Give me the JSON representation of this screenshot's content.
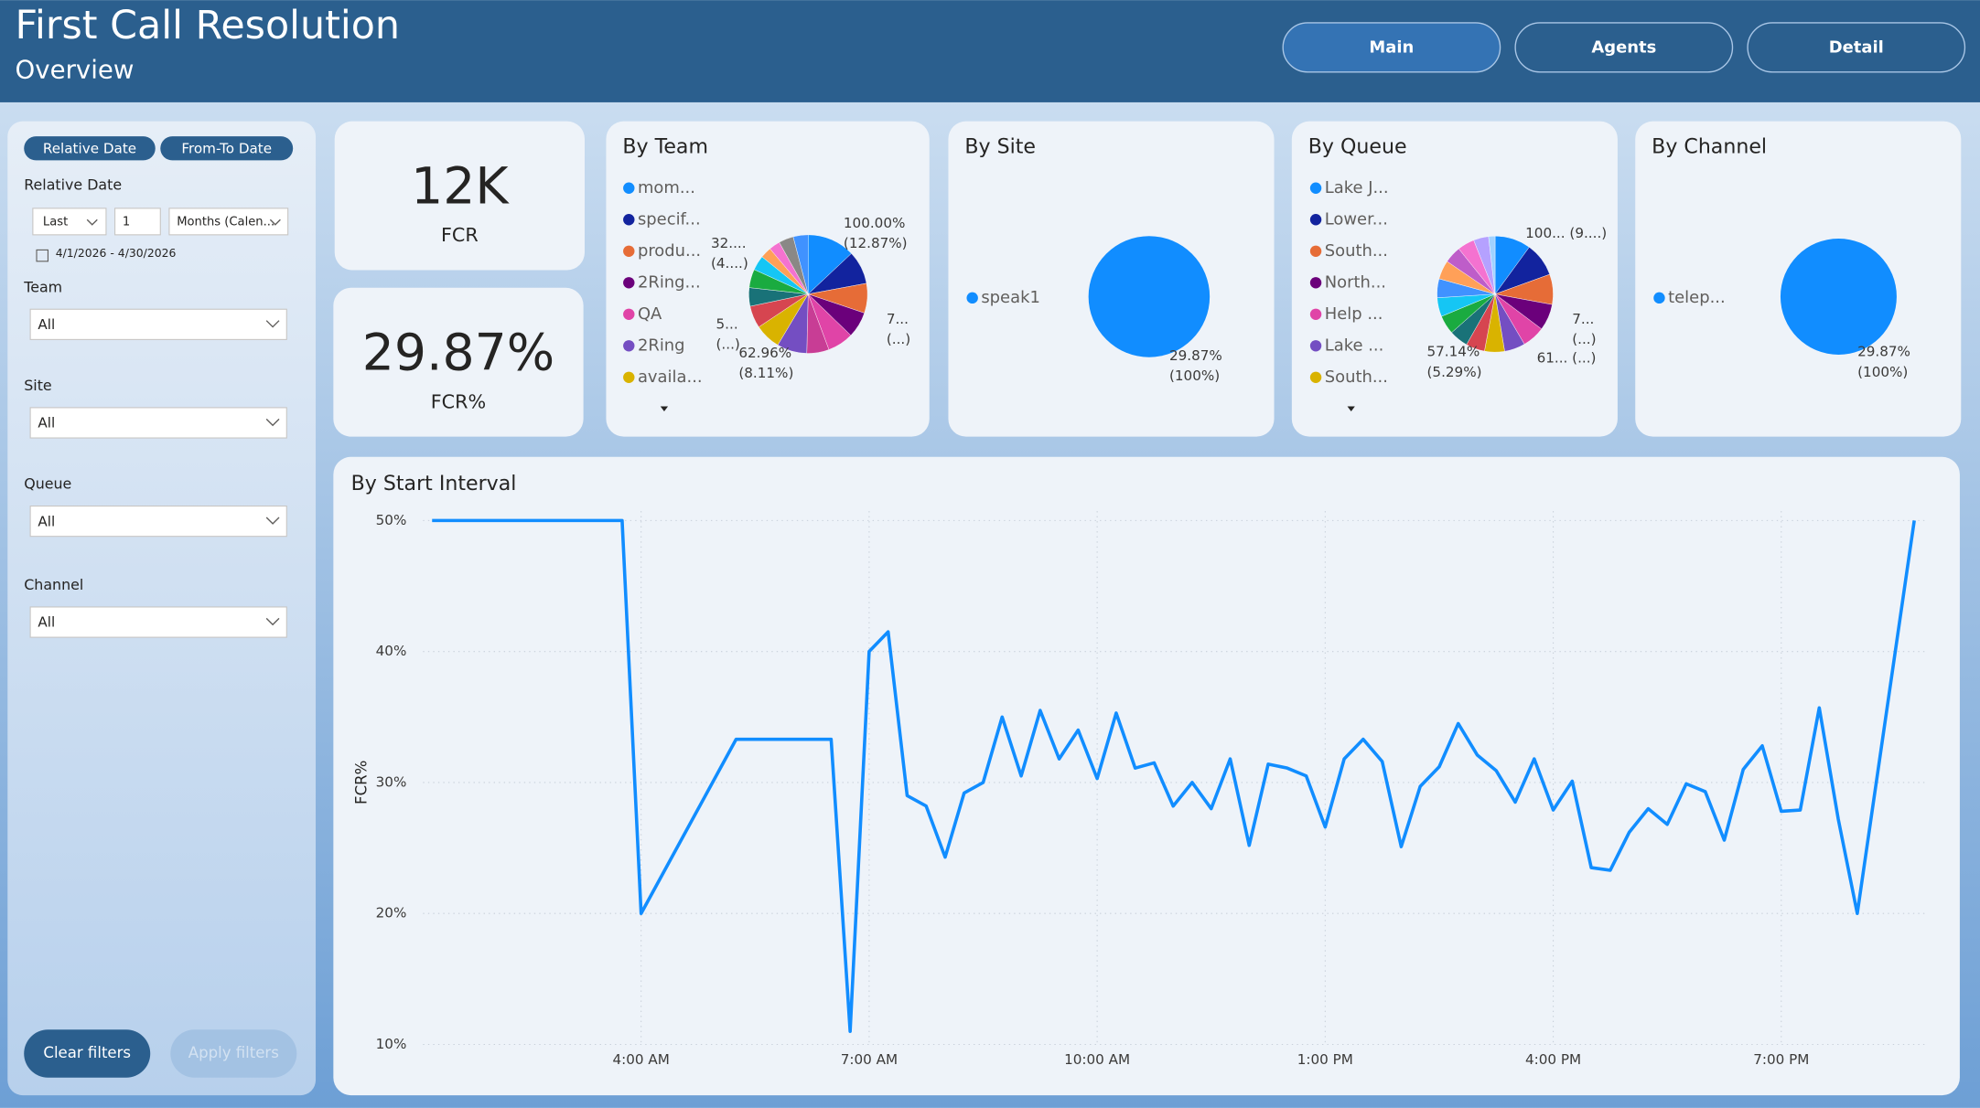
{
  "header": {
    "title": "First Call Resolution",
    "subtitle": "Overview",
    "nav": [
      "Main",
      "Agents",
      "Detail"
    ]
  },
  "filters": {
    "date_modes": [
      "Relative Date",
      "From-To Date"
    ],
    "relative_date_label": "Relative Date",
    "relative": [
      "Last",
      "1",
      "Months (Calen..."
    ],
    "date_range": "4/1/2026 - 4/30/2026",
    "dropdowns": [
      {
        "label": "Team",
        "value": "All"
      },
      {
        "label": "Site",
        "value": "All"
      },
      {
        "label": "Queue",
        "value": "All"
      },
      {
        "label": "Channel",
        "value": "All"
      }
    ],
    "buttons": [
      "Clear filters",
      "Apply filters"
    ]
  },
  "kpis": [
    {
      "value": "12K",
      "label": "FCR"
    },
    {
      "value": "29.87%",
      "label": "FCR%"
    }
  ],
  "pies": [
    {
      "type": "pie",
      "title": "By Team",
      "legend": [
        {
          "name": "mom...",
          "color": "#118DFF"
        },
        {
          "name": "specif...",
          "color": "#12239E"
        },
        {
          "name": "produ...",
          "color": "#E66C37"
        },
        {
          "name": "2Ring...",
          "color": "#6B007B"
        },
        {
          "name": "QA",
          "color": "#E044A7"
        },
        {
          "name": "2Ring",
          "color": "#744EC2"
        },
        {
          "name": "availa...",
          "color": "#D9B300"
        }
      ],
      "values": [
        12.87,
        9,
        8,
        7,
        7,
        6,
        8.11,
        7,
        6,
        5,
        5,
        4,
        3,
        3,
        4,
        4.02
      ],
      "colors": [
        "#118DFF",
        "#12239E",
        "#E66C37",
        "#6B007B",
        "#E044A7",
        "#C83D95",
        "#744EC2",
        "#D9B300",
        "#D64550",
        "#197278",
        "#1AAB40",
        "#15C6F4",
        "#FFA058",
        "#F472D0",
        "#8A8886",
        "#4092FF"
      ],
      "annotations": [
        "100.00%",
        "(12.87%)",
        "32....",
        "(4....)",
        "5...",
        "(...)",
        "62.96%",
        "(8.11%)",
        "7...",
        "(...)"
      ]
    },
    {
      "type": "pie",
      "title": "By Site",
      "legend": [
        {
          "name": "speak1",
          "color": "#118DFF"
        }
      ],
      "values": [
        100
      ],
      "colors": [
        "#118DFF"
      ],
      "annotations": [
        "29.87%",
        "(100%)"
      ]
    },
    {
      "type": "pie",
      "title": "By Queue",
      "legend": [
        {
          "name": "Lake J...",
          "color": "#118DFF"
        },
        {
          "name": "Lower...",
          "color": "#12239E"
        },
        {
          "name": "South...",
          "color": "#E66C37"
        },
        {
          "name": "North...",
          "color": "#6B007B"
        },
        {
          "name": "Help ...",
          "color": "#E044A7"
        },
        {
          "name": "Lake ...",
          "color": "#744EC2"
        },
        {
          "name": "South...",
          "color": "#D9B300"
        }
      ],
      "values": [
        9.5,
        9,
        8,
        7,
        6,
        5.5,
        5.29,
        5,
        5,
        5,
        5,
        5,
        5,
        4.5,
        4.5,
        4,
        1.71
      ],
      "colors": [
        "#118DFF",
        "#12239E",
        "#E66C37",
        "#6B007B",
        "#E044A7",
        "#744EC2",
        "#D9B300",
        "#D64550",
        "#197278",
        "#1AAB40",
        "#15C6F4",
        "#4092FF",
        "#FFA058",
        "#BE5DC9",
        "#F472D0",
        "#B5A1FF",
        "#A0D1FF"
      ],
      "annotations": [
        "100... (9....)",
        "7...",
        "(...)",
        "61... (...)",
        "57.14%",
        "(5.29%)"
      ]
    },
    {
      "type": "pie",
      "title": "By Channel",
      "legend": [
        {
          "name": "telep...",
          "color": "#118DFF"
        }
      ],
      "values": [
        100
      ],
      "colors": [
        "#118DFF"
      ],
      "annotations": [
        "29.87%",
        "(100%)"
      ]
    }
  ],
  "line_chart": {
    "type": "line",
    "title": "By Start Interval",
    "y_label": "FCR%",
    "color": "#118DFF",
    "grid": true,
    "x": [
      75,
      225,
      240,
      315,
      390,
      405,
      420,
      435,
      450,
      465,
      480,
      495,
      510,
      525,
      540,
      555,
      570,
      585,
      600,
      615,
      630,
      645,
      660,
      675,
      690,
      705,
      720,
      735,
      750,
      765,
      780,
      795,
      810,
      825,
      840,
      855,
      870,
      885,
      900,
      915,
      930,
      945,
      960,
      975,
      990,
      1005,
      1020,
      1035,
      1050,
      1065,
      1080,
      1095,
      1110,
      1125,
      1140,
      1155,
      1170,
      1185,
      1200,
      1245
    ],
    "values": [
      50,
      50,
      20,
      33.3,
      33.3,
      11,
      40,
      41.5,
      29,
      28.2,
      24.3,
      29.2,
      30,
      35,
      30.5,
      35.5,
      31.8,
      34,
      30.3,
      35.3,
      31.1,
      31.5,
      28.2,
      30,
      28,
      31.8,
      25.2,
      31.4,
      31.1,
      30.5,
      26.6,
      31.8,
      33.3,
      31.6,
      25.1,
      29.7,
      31.2,
      34.5,
      32.1,
      30.9,
      28.5,
      31.8,
      27.9,
      30.1,
      23.5,
      23.3,
      26.2,
      28,
      26.8,
      29.9,
      29.3,
      25.6,
      31,
      32.8,
      27.8,
      27.9,
      35.7,
      27.2,
      20,
      50
    ],
    "xlim": [
      20,
      1260
    ],
    "xticks": [
      {
        "value": 240,
        "label": "4:00 AM"
      },
      {
        "value": 420,
        "label": "7:00 AM"
      },
      {
        "value": 600,
        "label": "10:00 AM"
      },
      {
        "value": 780,
        "label": "1:00 PM"
      },
      {
        "value": 960,
        "label": "4:00 PM"
      },
      {
        "value": 1140,
        "label": "7:00 PM"
      }
    ],
    "ylim": [
      9.3,
      51.2
    ],
    "yticks": [
      {
        "value": 10,
        "label": "10%"
      },
      {
        "value": 20,
        "label": "20%"
      },
      {
        "value": 30,
        "label": "30%"
      },
      {
        "value": 40,
        "label": "40%"
      },
      {
        "value": 50,
        "label": "50%"
      }
    ]
  }
}
